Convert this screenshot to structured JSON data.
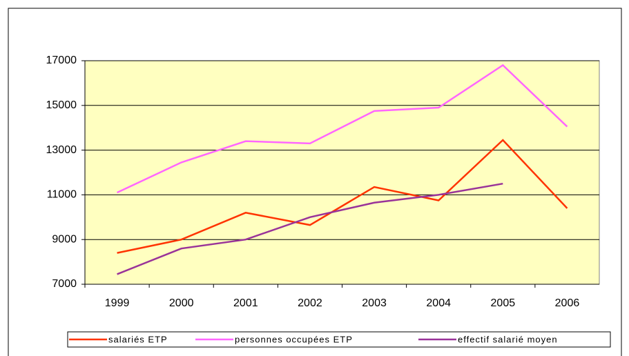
{
  "chart_data": {
    "type": "line",
    "categories": [
      "1999",
      "2000",
      "2001",
      "2002",
      "2003",
      "2004",
      "2005",
      "2006"
    ],
    "series": [
      {
        "name": "salariés ETP",
        "color": "#ff3300",
        "values": [
          8400,
          9000,
          10200,
          9650,
          11350,
          10750,
          13450,
          10400
        ]
      },
      {
        "name": "personnes occupées ETP",
        "color": "#ff66ff",
        "values": [
          11100,
          12450,
          13400,
          13300,
          14750,
          14900,
          16800,
          14050
        ]
      },
      {
        "name": "effectif salarié moyen",
        "color": "#993399",
        "values": [
          7450,
          8600,
          9000,
          10000,
          10650,
          11000,
          11500,
          null
        ]
      }
    ],
    "ylim": [
      7000,
      17000
    ],
    "yticks": [
      7000,
      9000,
      11000,
      13000,
      15000,
      17000
    ],
    "grid": true,
    "legend": "bottom",
    "background": "#ffffc0"
  }
}
